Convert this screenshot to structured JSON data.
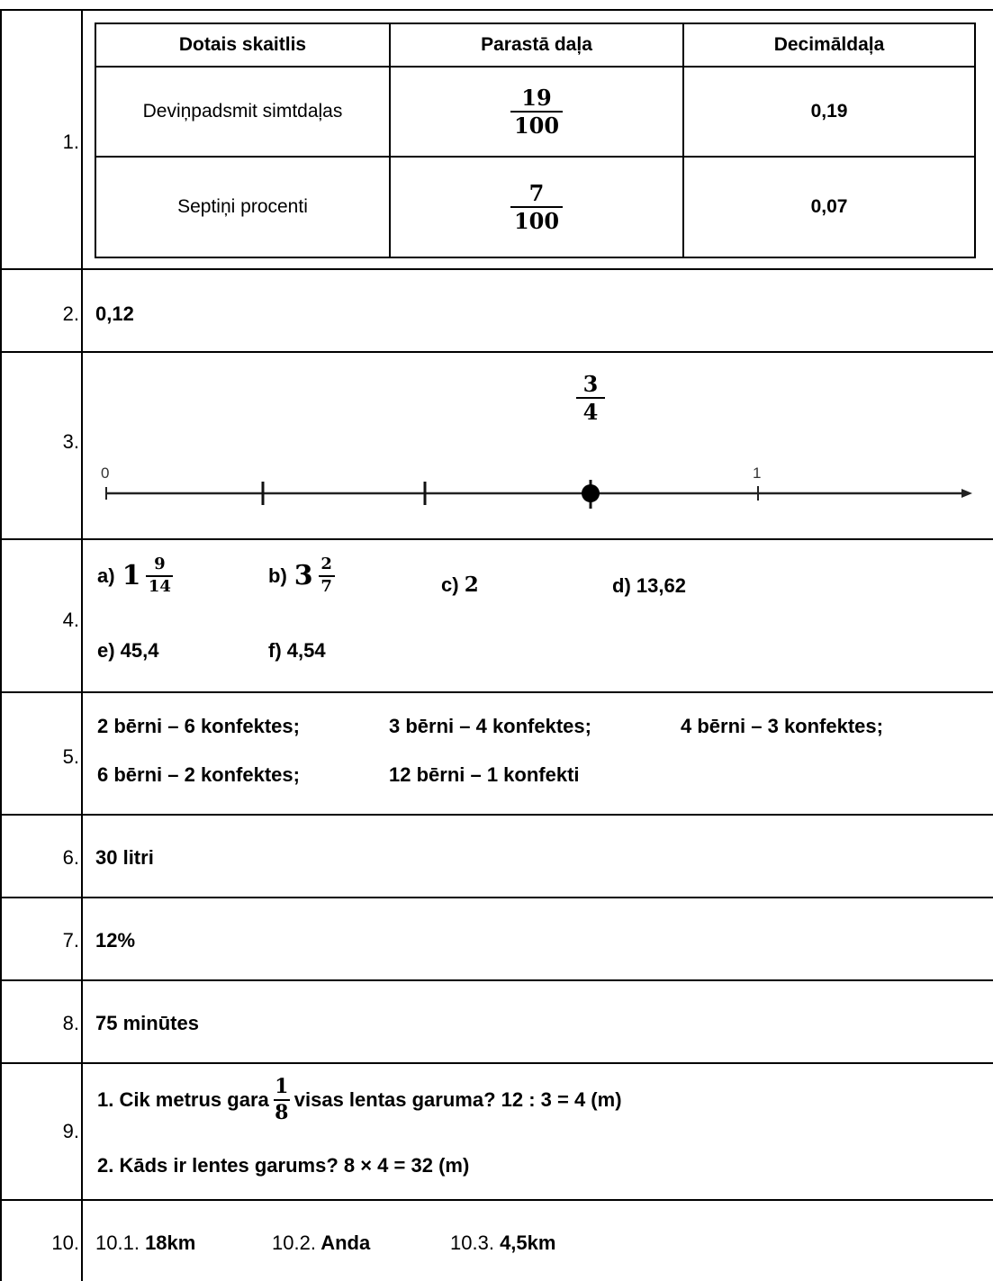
{
  "rows": [
    {
      "n": "1."
    },
    {
      "n": "2."
    },
    {
      "n": "3."
    },
    {
      "n": "4."
    },
    {
      "n": "5."
    },
    {
      "n": "6."
    },
    {
      "n": "7."
    },
    {
      "n": "8."
    },
    {
      "n": "9."
    },
    {
      "n": "10."
    }
  ],
  "q1": {
    "headers": [
      "Dotais skaitlis",
      "Parastā daļa",
      "Decimāldaļa"
    ],
    "r1": {
      "given": "Deviņpadsmit simtdaļas",
      "num": "19",
      "den": "100",
      "dec": "0,19"
    },
    "r2": {
      "given": "Septiņi procenti",
      "num": "7",
      "den": "100",
      "dec": "0,07"
    }
  },
  "q2": {
    "answer": "0,12"
  },
  "q3": {
    "label_start": "0",
    "label_end": "1",
    "frac_num": "3",
    "frac_den": "4"
  },
  "q4": {
    "a_label": "a)",
    "a_whole": "1",
    "a_num": "9",
    "a_den": "14",
    "b_label": "b)",
    "b_whole": "3",
    "b_num": "2",
    "b_den": "7",
    "c_label": "c)",
    "c_val": "2",
    "d": "d) 13,62",
    "e": "e) 45,4",
    "f": "f) 4,54"
  },
  "q5": {
    "p1": "2 bērni – 6 konfektes;",
    "p2": "3 bērni – 4 konfektes;",
    "p3": "4 bērni – 3 konfektes;",
    "p4": "6 bērni – 2 konfektes;",
    "p5": "12 bērni – 1 konfekti"
  },
  "q6": {
    "answer": "30 litri"
  },
  "q7": {
    "answer": "12%"
  },
  "q8": {
    "answer": "75 minūtes"
  },
  "q9": {
    "l1_pre": "1. Cik metrus gara",
    "frac_num": "1",
    "frac_den": "8",
    "l1_post": "visas lentas garuma? 12 : 3 = 4 (m)",
    "l2": "2. Kāds ir lentes garums? 8 × 4 = 32 (m)"
  },
  "q10": {
    "k1": "10.1.",
    "v1": "18km",
    "k2": "10.2.",
    "v2": "Anda",
    "k3": "10.3.",
    "v3": "4,5km"
  }
}
